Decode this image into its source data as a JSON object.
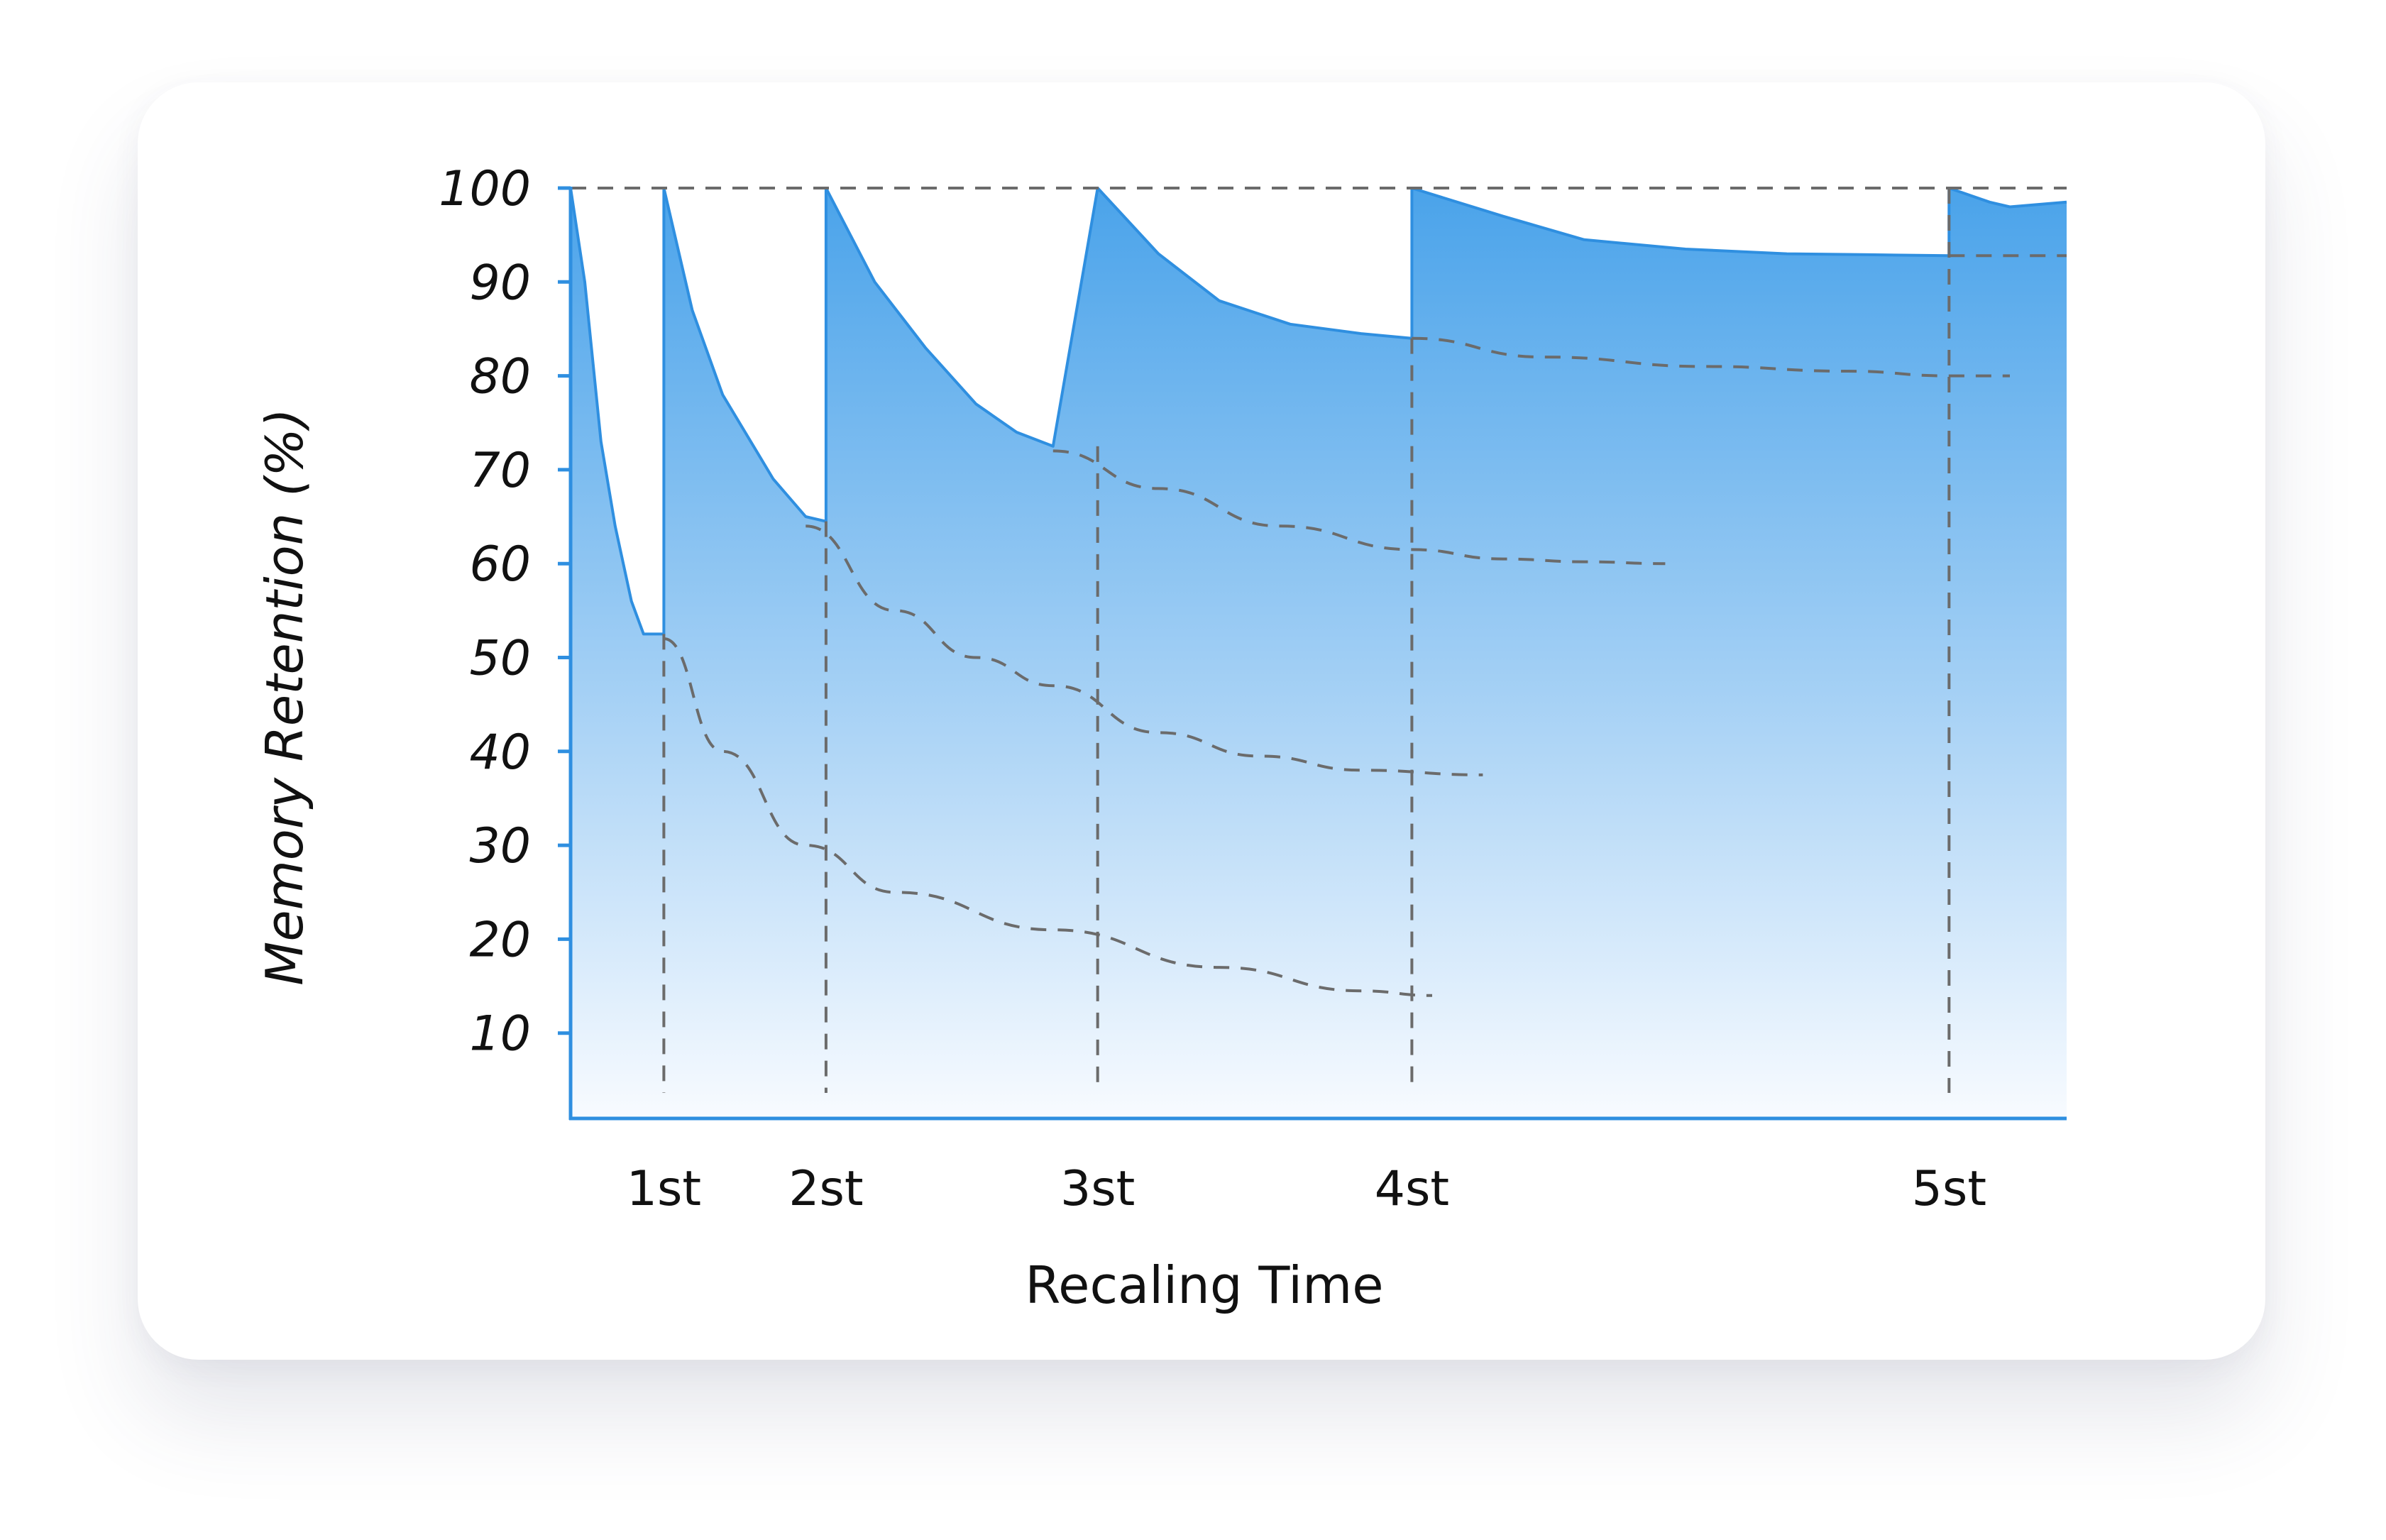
{
  "chart_data": {
    "type": "area",
    "title": "",
    "xlabel": "Recaling Time",
    "ylabel": "Memory Retention (%)",
    "yticks": [
      "100",
      "90",
      "80",
      "70",
      "60",
      "50",
      "40",
      "30",
      "20",
      "10"
    ],
    "ylim": [
      0,
      100
    ],
    "categories": [
      "1st",
      "2st",
      "3st",
      "4st",
      "5st"
    ],
    "retention_curve": {
      "x": [
        0,
        0.07,
        0.15,
        0.22,
        0.3,
        0.36,
        0.46,
        0.46,
        0.6,
        0.75,
        1.0,
        1.16,
        1.26,
        1.26,
        1.5,
        1.75,
        2.0,
        2.2,
        2.38,
        2.6,
        2.6,
        2.9,
        3.2,
        3.55,
        3.9,
        4.15,
        4.15,
        4.6,
        5.0,
        5.5,
        6.0,
        6.4,
        6.8,
        6.8,
        7.0,
        7.1,
        7.38
      ],
      "y": [
        100,
        90,
        73,
        64,
        56,
        52.5,
        52.5,
        100,
        87,
        78,
        69,
        65,
        64.5,
        100,
        90,
        83,
        77,
        74,
        72.5,
        100,
        100,
        93,
        88,
        85.5,
        84.5,
        84,
        100,
        97,
        94.5,
        93.5,
        93,
        92.9,
        92.8,
        100,
        98.5,
        98,
        98.5
      ]
    },
    "forgetting_curves": [
      {
        "from": "1st",
        "x": [
          0.46,
          0.75,
          1.16,
          1.6,
          2.38,
          3.2,
          3.9,
          4.25
        ],
        "y": [
          52,
          40,
          30,
          25,
          21,
          17,
          14.5,
          14
        ]
      },
      {
        "from": "2st",
        "x": [
          1.16,
          1.6,
          2.0,
          2.38,
          2.9,
          3.4,
          3.9,
          4.5
        ],
        "y": [
          64,
          55,
          50,
          47,
          42,
          39.5,
          38,
          37.5
        ]
      },
      {
        "from": "3st",
        "x": [
          2.38,
          2.9,
          3.5,
          4.15,
          4.6,
          5.0,
          5.4
        ],
        "y": [
          72,
          68,
          64,
          61.5,
          60.5,
          60.2,
          60
        ]
      },
      {
        "from": "4st",
        "x": [
          4.15,
          4.8,
          5.6,
          6.3,
          6.8,
          7.1
        ],
        "y": [
          84,
          82,
          81,
          80.5,
          80,
          80
        ]
      },
      {
        "from": "5st",
        "x": [
          6.8,
          7.38
        ],
        "y": [
          92.8,
          92.8
        ]
      }
    ]
  }
}
